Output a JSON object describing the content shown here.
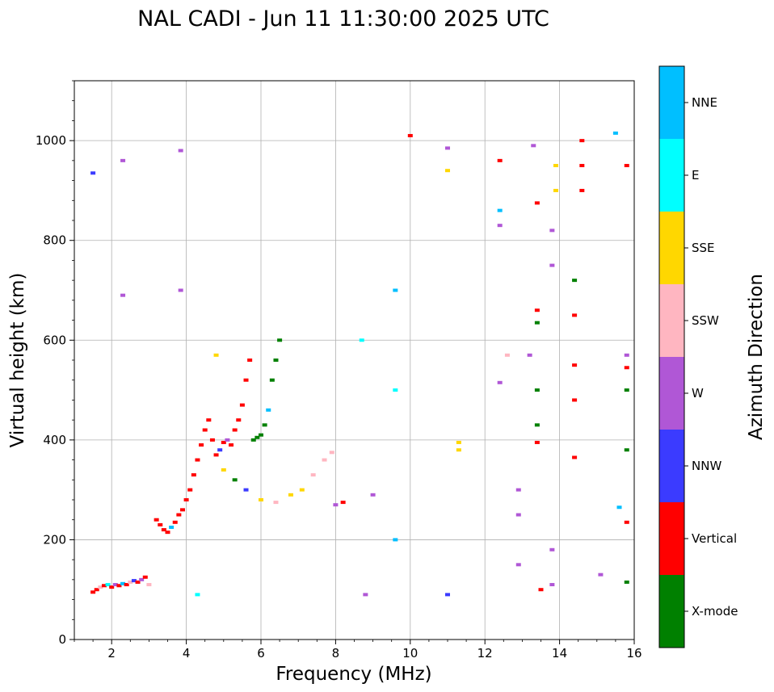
{
  "chart_data": {
    "type": "scatter",
    "title": "NAL CADI - Jun 11 11:30:00 2025 UTC",
    "xlabel": "Frequency (MHz)",
    "ylabel": "Virtual height (km)",
    "xlim": [
      1,
      16
    ],
    "ylim": [
      0,
      1120
    ],
    "xticks": [
      2,
      4,
      6,
      8,
      10,
      12,
      14,
      16
    ],
    "yticks": [
      0,
      200,
      400,
      600,
      800,
      1000
    ],
    "grid": true,
    "colorbar": {
      "label": "Azimuth Direction",
      "categories": [
        {
          "name": "X-mode",
          "color": "#008000"
        },
        {
          "name": "Vertical",
          "color": "#ff0000"
        },
        {
          "name": "NNW",
          "color": "#3b3bff"
        },
        {
          "name": "W",
          "color": "#b057d6"
        },
        {
          "name": "SSW",
          "color": "#ffb6c1"
        },
        {
          "name": "SSE",
          "color": "#ffd700"
        },
        {
          "name": "E",
          "color": "#00ffff"
        },
        {
          "name": "NNE",
          "color": "#00bfff"
        }
      ]
    },
    "points": [
      {
        "f": 1.5,
        "h": 95,
        "c": "Vertical"
      },
      {
        "f": 1.6,
        "h": 100,
        "c": "Vertical"
      },
      {
        "f": 1.7,
        "h": 105,
        "c": "SSW"
      },
      {
        "f": 1.8,
        "h": 108,
        "c": "Vertical"
      },
      {
        "f": 1.9,
        "h": 110,
        "c": "E"
      },
      {
        "f": 2.0,
        "h": 105,
        "c": "Vertical"
      },
      {
        "f": 2.1,
        "h": 110,
        "c": "W"
      },
      {
        "f": 2.2,
        "h": 108,
        "c": "Vertical"
      },
      {
        "f": 2.3,
        "h": 112,
        "c": "NNE"
      },
      {
        "f": 2.4,
        "h": 110,
        "c": "Vertical"
      },
      {
        "f": 2.5,
        "h": 115,
        "c": "SSW"
      },
      {
        "f": 2.6,
        "h": 118,
        "c": "NNW"
      },
      {
        "f": 2.7,
        "h": 115,
        "c": "Vertical"
      },
      {
        "f": 2.8,
        "h": 120,
        "c": "W"
      },
      {
        "f": 2.9,
        "h": 125,
        "c": "Vertical"
      },
      {
        "f": 3.0,
        "h": 110,
        "c": "SSW"
      },
      {
        "f": 3.2,
        "h": 240,
        "c": "Vertical"
      },
      {
        "f": 3.3,
        "h": 230,
        "c": "Vertical"
      },
      {
        "f": 3.4,
        "h": 220,
        "c": "Vertical"
      },
      {
        "f": 3.5,
        "h": 215,
        "c": "Vertical"
      },
      {
        "f": 3.6,
        "h": 225,
        "c": "NNE"
      },
      {
        "f": 3.7,
        "h": 235,
        "c": "Vertical"
      },
      {
        "f": 3.8,
        "h": 250,
        "c": "Vertical"
      },
      {
        "f": 3.9,
        "h": 260,
        "c": "Vertical"
      },
      {
        "f": 4.0,
        "h": 280,
        "c": "Vertical"
      },
      {
        "f": 4.1,
        "h": 300,
        "c": "Vertical"
      },
      {
        "f": 4.2,
        "h": 330,
        "c": "Vertical"
      },
      {
        "f": 4.3,
        "h": 360,
        "c": "Vertical"
      },
      {
        "f": 4.4,
        "h": 390,
        "c": "Vertical"
      },
      {
        "f": 4.5,
        "h": 420,
        "c": "Vertical"
      },
      {
        "f": 4.6,
        "h": 440,
        "c": "Vertical"
      },
      {
        "f": 4.7,
        "h": 400,
        "c": "Vertical"
      },
      {
        "f": 4.8,
        "h": 370,
        "c": "Vertical"
      },
      {
        "f": 4.9,
        "h": 380,
        "c": "NNW"
      },
      {
        "f": 5.0,
        "h": 395,
        "c": "Vertical"
      },
      {
        "f": 5.1,
        "h": 400,
        "c": "W"
      },
      {
        "f": 5.2,
        "h": 390,
        "c": "Vertical"
      },
      {
        "f": 5.3,
        "h": 420,
        "c": "Vertical"
      },
      {
        "f": 5.4,
        "h": 440,
        "c": "Vertical"
      },
      {
        "f": 5.5,
        "h": 470,
        "c": "Vertical"
      },
      {
        "f": 5.6,
        "h": 520,
        "c": "Vertical"
      },
      {
        "f": 5.7,
        "h": 560,
        "c": "Vertical"
      },
      {
        "f": 5.8,
        "h": 400,
        "c": "X-mode"
      },
      {
        "f": 5.9,
        "h": 405,
        "c": "X-mode"
      },
      {
        "f": 6.0,
        "h": 410,
        "c": "X-mode"
      },
      {
        "f": 6.1,
        "h": 430,
        "c": "X-mode"
      },
      {
        "f": 6.2,
        "h": 460,
        "c": "NNE"
      },
      {
        "f": 6.3,
        "h": 520,
        "c": "X-mode"
      },
      {
        "f": 6.4,
        "h": 560,
        "c": "X-mode"
      },
      {
        "f": 6.5,
        "h": 600,
        "c": "X-mode"
      },
      {
        "f": 5.0,
        "h": 340,
        "c": "SSE"
      },
      {
        "f": 5.3,
        "h": 320,
        "c": "X-mode"
      },
      {
        "f": 5.6,
        "h": 300,
        "c": "NNW"
      },
      {
        "f": 6.0,
        "h": 280,
        "c": "SSE"
      },
      {
        "f": 6.4,
        "h": 275,
        "c": "SSW"
      },
      {
        "f": 6.8,
        "h": 290,
        "c": "SSE"
      },
      {
        "f": 7.1,
        "h": 300,
        "c": "SSE"
      },
      {
        "f": 7.4,
        "h": 330,
        "c": "SSW"
      },
      {
        "f": 7.7,
        "h": 360,
        "c": "SSW"
      },
      {
        "f": 7.9,
        "h": 375,
        "c": "SSW"
      },
      {
        "f": 8.0,
        "h": 270,
        "c": "W"
      },
      {
        "f": 8.2,
        "h": 275,
        "c": "Vertical"
      },
      {
        "f": 4.8,
        "h": 570,
        "c": "SSE"
      },
      {
        "f": 2.3,
        "h": 960,
        "c": "W"
      },
      {
        "f": 2.3,
        "h": 690,
        "c": "W"
      },
      {
        "f": 3.85,
        "h": 980,
        "c": "W"
      },
      {
        "f": 3.85,
        "h": 700,
        "c": "W"
      },
      {
        "f": 1.5,
        "h": 935,
        "c": "NNW"
      },
      {
        "f": 9.6,
        "h": 700,
        "c": "NNE"
      },
      {
        "f": 9.6,
        "h": 500,
        "c": "E"
      },
      {
        "f": 9.6,
        "h": 200,
        "c": "NNE"
      },
      {
        "f": 10.0,
        "h": 1010,
        "c": "Vertical"
      },
      {
        "f": 12.4,
        "h": 830,
        "c": "W"
      },
      {
        "f": 12.4,
        "h": 860,
        "c": "NNE"
      },
      {
        "f": 12.9,
        "h": 300,
        "c": "W"
      },
      {
        "f": 12.9,
        "h": 250,
        "c": "W"
      },
      {
        "f": 12.9,
        "h": 150,
        "c": "W"
      },
      {
        "f": 13.3,
        "h": 990,
        "c": "W"
      },
      {
        "f": 13.9,
        "h": 950,
        "c": "SSE"
      },
      {
        "f": 13.9,
        "h": 900,
        "c": "SSE"
      },
      {
        "f": 13.8,
        "h": 820,
        "c": "W"
      },
      {
        "f": 13.8,
        "h": 750,
        "c": "W"
      },
      {
        "f": 14.6,
        "h": 1000,
        "c": "Vertical"
      },
      {
        "f": 14.6,
        "h": 950,
        "c": "Vertical"
      },
      {
        "f": 14.6,
        "h": 900,
        "c": "Vertical"
      },
      {
        "f": 14.4,
        "h": 720,
        "c": "X-mode"
      },
      {
        "f": 14.4,
        "h": 650,
        "c": "Vertical"
      },
      {
        "f": 14.4,
        "h": 550,
        "c": "Vertical"
      },
      {
        "f": 14.4,
        "h": 480,
        "c": "Vertical"
      },
      {
        "f": 14.4,
        "h": 365,
        "c": "Vertical"
      },
      {
        "f": 15.1,
        "h": 130,
        "c": "W"
      },
      {
        "f": 15.6,
        "h": 265,
        "c": "NNE"
      },
      {
        "f": 15.8,
        "h": 500,
        "c": "X-mode"
      },
      {
        "f": 15.8,
        "h": 545,
        "c": "Vertical"
      },
      {
        "f": 15.8,
        "h": 570,
        "c": "W"
      },
      {
        "f": 15.8,
        "h": 950,
        "c": "Vertical"
      },
      {
        "f": 15.5,
        "h": 1015,
        "c": "NNE"
      },
      {
        "f": 15.8,
        "h": 380,
        "c": "X-mode"
      },
      {
        "f": 15.8,
        "h": 115,
        "c": "X-mode"
      },
      {
        "f": 15.8,
        "h": 235,
        "c": "Vertical"
      },
      {
        "f": 13.5,
        "h": 100,
        "c": "Vertical"
      },
      {
        "f": 13.8,
        "h": 110,
        "c": "W"
      },
      {
        "f": 13.8,
        "h": 180,
        "c": "W"
      },
      {
        "f": 11.0,
        "h": 90,
        "c": "NNW"
      },
      {
        "f": 8.8,
        "h": 90,
        "c": "W"
      },
      {
        "f": 4.3,
        "h": 90,
        "c": "E"
      },
      {
        "f": 9.0,
        "h": 290,
        "c": "W"
      },
      {
        "f": 8.7,
        "h": 600,
        "c": "E"
      },
      {
        "f": 11.3,
        "h": 380,
        "c": "SSE"
      },
      {
        "f": 11.3,
        "h": 395,
        "c": "SSE"
      },
      {
        "f": 11.0,
        "h": 985,
        "c": "W"
      },
      {
        "f": 11.0,
        "h": 940,
        "c": "SSE"
      },
      {
        "f": 13.4,
        "h": 875,
        "c": "Vertical"
      },
      {
        "f": 13.4,
        "h": 635,
        "c": "X-mode"
      },
      {
        "f": 13.4,
        "h": 660,
        "c": "Vertical"
      },
      {
        "f": 13.2,
        "h": 570,
        "c": "W"
      },
      {
        "f": 13.4,
        "h": 500,
        "c": "X-mode"
      },
      {
        "f": 13.4,
        "h": 430,
        "c": "X-mode"
      },
      {
        "f": 13.4,
        "h": 395,
        "c": "Vertical"
      },
      {
        "f": 12.4,
        "h": 515,
        "c": "W"
      },
      {
        "f": 12.6,
        "h": 570,
        "c": "SSW"
      },
      {
        "f": 12.4,
        "h": 960,
        "c": "Vertical"
      }
    ]
  }
}
